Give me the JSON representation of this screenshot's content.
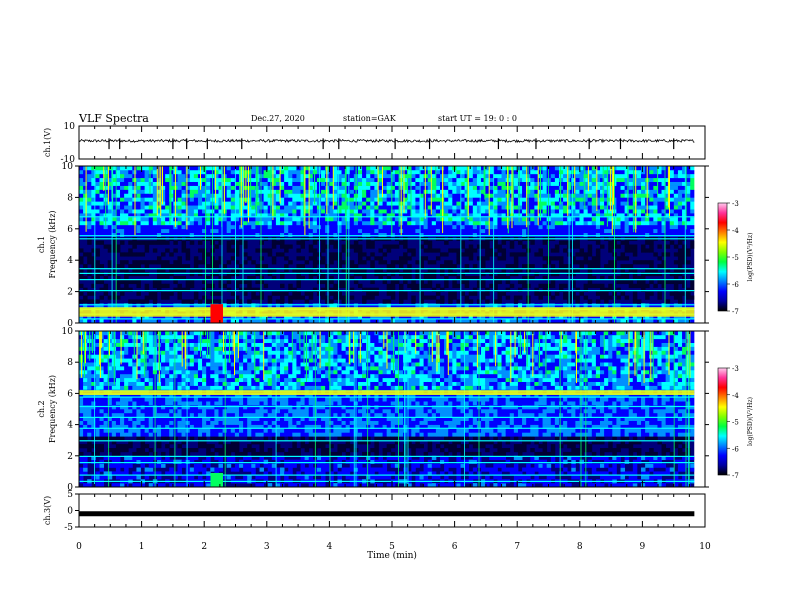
{
  "header": {
    "title": "VLF Spectra",
    "date": "Dec.27, 2020",
    "station": "station=GAK",
    "start": "start  UT =   19: 0  : 0"
  },
  "colors": {
    "frame": "#000000",
    "colormap": [
      "#000033",
      "#00007a",
      "#0000ff",
      "#0090ff",
      "#00ffff",
      "#00ff60",
      "#ffff00",
      "#ff6000",
      "#ff0000",
      "#ff66aa"
    ]
  },
  "chart_data": [
    {
      "type": "line",
      "id": "ch1-waveform",
      "ylabel": "ch.1(V)",
      "ylim": [
        -10,
        10
      ],
      "yticks": [
        "10",
        "-10"
      ],
      "x_range_min": [
        0,
        9.83
      ],
      "baseline_v": 1.0,
      "jitter_v": 0.8,
      "spike_times_min": [
        0.48,
        0.65,
        1.5,
        1.72,
        2.05,
        2.6,
        3.9,
        4.15,
        5.05,
        5.6,
        6.7,
        7.3,
        8.15,
        8.65,
        9.5
      ]
    },
    {
      "type": "heatmap",
      "id": "ch1-spectrogram",
      "ylabel": "ch.1\nFrequency (kHz)",
      "ylim": [
        0,
        10
      ],
      "yticks": [
        "0",
        "2",
        "4",
        "6",
        "8",
        "10"
      ],
      "x_range_min": [
        0,
        9.83
      ],
      "colorbar": {
        "label": "log(PSD)(V²/Hz)",
        "range": [
          -7,
          -3
        ],
        "ticks": [
          "-3",
          "-4",
          "-5",
          "-6",
          "-7"
        ]
      },
      "bands_khz": [
        0.3,
        0.6,
        0.9,
        1.0,
        1.2,
        2.1,
        2.8,
        3.2,
        3.5,
        5.4,
        5.6,
        6.8
      ],
      "strong_band_khz": [
        0.4,
        1.0
      ],
      "bright_patch_min": [
        2.1,
        2.3
      ]
    },
    {
      "type": "heatmap",
      "id": "ch2-spectrogram",
      "ylabel": "ch.2\nFrequency (kHz)",
      "ylim": [
        0,
        10
      ],
      "yticks": [
        "0",
        "2",
        "4",
        "6",
        "8",
        "10"
      ],
      "x_range_min": [
        0,
        9.83
      ],
      "colorbar": {
        "label": "log(PSD)(V²/Hz)",
        "range": [
          -7,
          -3
        ],
        "ticks": [
          "-3",
          "-4",
          "-5",
          "-6",
          "-7"
        ]
      },
      "bands_khz": [
        0.4,
        0.8,
        1.6,
        2.0,
        3.0,
        3.8,
        4.5,
        5.2,
        5.8,
        6.0,
        6.2
      ],
      "strong_band_khz": [
        5.9,
        6.2
      ],
      "bright_patch_min": [
        2.1,
        2.3
      ]
    },
    {
      "type": "line",
      "id": "ch3-waveform",
      "ylabel": "ch.3(V)",
      "ylim": [
        -5,
        5
      ],
      "yticks": [
        "5",
        "0",
        "-5"
      ],
      "x_range_min": [
        0,
        9.83
      ],
      "level_v": -1.0
    }
  ],
  "xaxis": {
    "label": "Time  (min)",
    "range": [
      0,
      10
    ],
    "ticks": [
      "0",
      "1",
      "2",
      "3",
      "4",
      "5",
      "6",
      "7",
      "8",
      "9",
      "10"
    ]
  }
}
